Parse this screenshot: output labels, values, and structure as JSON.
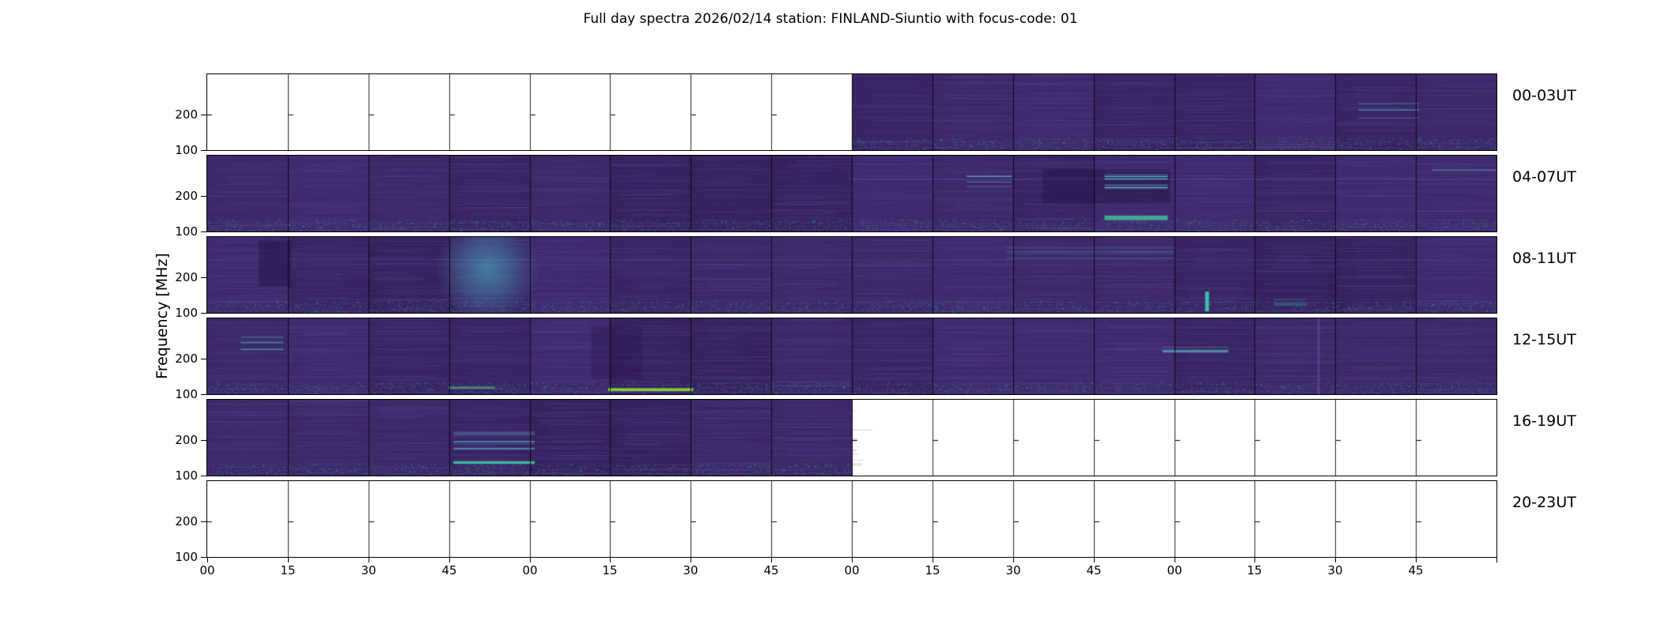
{
  "title": "Full day spectra 2026/02/14 station: FINLAND-Siuntio with focus-code: 01",
  "chart_data": {
    "type": "heatmap",
    "subtype": "radio-spectrogram-overview",
    "title": "Full day spectra 2026/02/14 station: FINLAND-Siuntio with focus-code: 01",
    "station": "FINLAND-Siuntio",
    "date": "2026/02/14",
    "focus_code": "01",
    "ylabel": "Frequency [MHz]",
    "y_tick_labels": [
      "200",
      "100"
    ],
    "y_axis": {
      "inverted": true,
      "tick_200_frac": 0.53,
      "tick_100_frac": 1.0
    },
    "x_tick_labels": [
      "00",
      "15",
      "30",
      "45",
      "00",
      "15",
      "30",
      "45",
      "00",
      "15",
      "30",
      "45",
      "00",
      "15",
      "30",
      "45"
    ],
    "segments_per_row": 16,
    "minutes_per_segment": 15,
    "colors": {
      "base": "#3a2466",
      "base_variants": [
        "#392363",
        "#3d2769",
        "#36205e",
        "#40296e"
      ],
      "stripe_cols": [
        "#4a3585",
        "#3f2f73",
        "#55407f",
        "#433e85",
        "#38346e",
        "#5a4a8f",
        "#2f2260"
      ],
      "speckle_cols": [
        "#2a9d8f",
        "#35b779",
        "#43bfa5",
        "#31688e"
      ],
      "no_data": "#ffffff",
      "border": "#000000"
    },
    "rows": [
      {
        "label": "00-03UT",
        "data_segments": [
          [
            8,
            16
          ]
        ],
        "features": [
          {
            "kind": "lines",
            "x": 0.893,
            "y": 0.25,
            "w": 0.047,
            "h": 0.33,
            "color": "#53b8c4",
            "alpha": 0.55,
            "n": 5
          }
        ]
      },
      {
        "label": "04-07UT",
        "data_segments": [
          [
            0,
            16
          ]
        ],
        "features": [
          {
            "kind": "band",
            "x": 0.5,
            "y": 0.3,
            "w": 0.5,
            "h": 0.02,
            "color": "#56449a",
            "alpha": 0.5
          },
          {
            "kind": "lines",
            "x": 0.589,
            "y": 0.26,
            "w": 0.035,
            "h": 0.17,
            "color": "#5fd0c9",
            "alpha": 0.8,
            "n": 4
          },
          {
            "kind": "dark",
            "x": 0.648,
            "y": 0.18,
            "w": 0.099,
            "h": 0.45,
            "color": "#231245",
            "alpha": 0.45
          },
          {
            "kind": "lines",
            "x": 0.696,
            "y": 0.22,
            "w": 0.049,
            "h": 0.3,
            "color": "#62d6cf",
            "alpha": 0.85,
            "n": 6
          },
          {
            "kind": "band",
            "x": 0.696,
            "y": 0.79,
            "w": 0.049,
            "h": 0.06,
            "color": "#45c6a3",
            "alpha": 0.8
          },
          {
            "kind": "lines",
            "x": 0.95,
            "y": 0.08,
            "w": 0.05,
            "h": 0.12,
            "color": "#53b8c4",
            "alpha": 0.4,
            "n": 3
          }
        ]
      },
      {
        "label": "08-11UT",
        "data_segments": [
          [
            0,
            16
          ]
        ],
        "features": [
          {
            "kind": "blob",
            "x": 0.185,
            "y": 0.25,
            "w": 0.065,
            "h": 0.35,
            "color": "#50b4c8",
            "alpha": 0.6
          },
          {
            "kind": "dark",
            "x": 0.04,
            "y": 0.05,
            "w": 0.025,
            "h": 0.6,
            "color": "#2a1650",
            "alpha": 0.6
          },
          {
            "kind": "lines",
            "x": 0.62,
            "y": 0.12,
            "w": 0.13,
            "h": 0.2,
            "color": "#4d9fb8",
            "alpha": 0.35,
            "n": 5
          },
          {
            "kind": "vline",
            "x": 0.774,
            "y": 0.72,
            "w": 0.003,
            "h": 0.26,
            "color": "#3ad2ae",
            "alpha": 0.9
          },
          {
            "kind": "lines",
            "x": 0.827,
            "y": 0.78,
            "w": 0.026,
            "h": 0.16,
            "color": "#43aca6",
            "alpha": 0.55,
            "n": 4
          }
        ]
      },
      {
        "label": "12-15UT",
        "data_segments": [
          [
            0,
            16
          ]
        ],
        "features": [
          {
            "kind": "lines",
            "x": 0.026,
            "y": 0.125,
            "w": 0.033,
            "h": 0.35,
            "color": "#4fb4ad",
            "alpha": 0.5,
            "n": 5
          },
          {
            "kind": "dark",
            "x": 0.298,
            "y": 0.1,
            "w": 0.04,
            "h": 0.7,
            "color": "#2a1650",
            "alpha": 0.35
          },
          {
            "kind": "band",
            "x": 0.187,
            "y": 0.9,
            "w": 0.036,
            "h": 0.03,
            "color": "#50c878",
            "alpha": 0.6
          },
          {
            "kind": "band",
            "x": 0.311,
            "y": 0.92,
            "w": 0.066,
            "h": 0.04,
            "color": "#90d743",
            "alpha": 0.9
          },
          {
            "kind": "lines",
            "x": 0.741,
            "y": 0.24,
            "w": 0.051,
            "h": 0.2,
            "color": "#57bec8",
            "alpha": 0.6,
            "n": 5
          },
          {
            "kind": "vline",
            "x": 0.861,
            "y": 0.0,
            "w": 0.002,
            "h": 1.0,
            "color": "#7a6ab5",
            "alpha": 0.35
          }
        ]
      },
      {
        "label": "16-19UT",
        "data_segments": [
          [
            0,
            8
          ]
        ],
        "features": [
          {
            "kind": "lines",
            "x": 0.191,
            "y": 0.21,
            "w": 0.063,
            "h": 0.54,
            "color": "#5bc8d2",
            "alpha": 0.55,
            "n": 8
          },
          {
            "kind": "band",
            "x": 0.191,
            "y": 0.81,
            "w": 0.063,
            "h": 0.035,
            "color": "#3fd2a8",
            "alpha": 0.85
          },
          {
            "kind": "lines",
            "x": 0.0,
            "y": 0.15,
            "w": 0.06,
            "h": 0.2,
            "color": "#5a4a9a",
            "alpha": 0.45,
            "n": 4
          }
        ]
      },
      {
        "label": "20-23UT",
        "data_segments": [],
        "features": []
      }
    ]
  }
}
